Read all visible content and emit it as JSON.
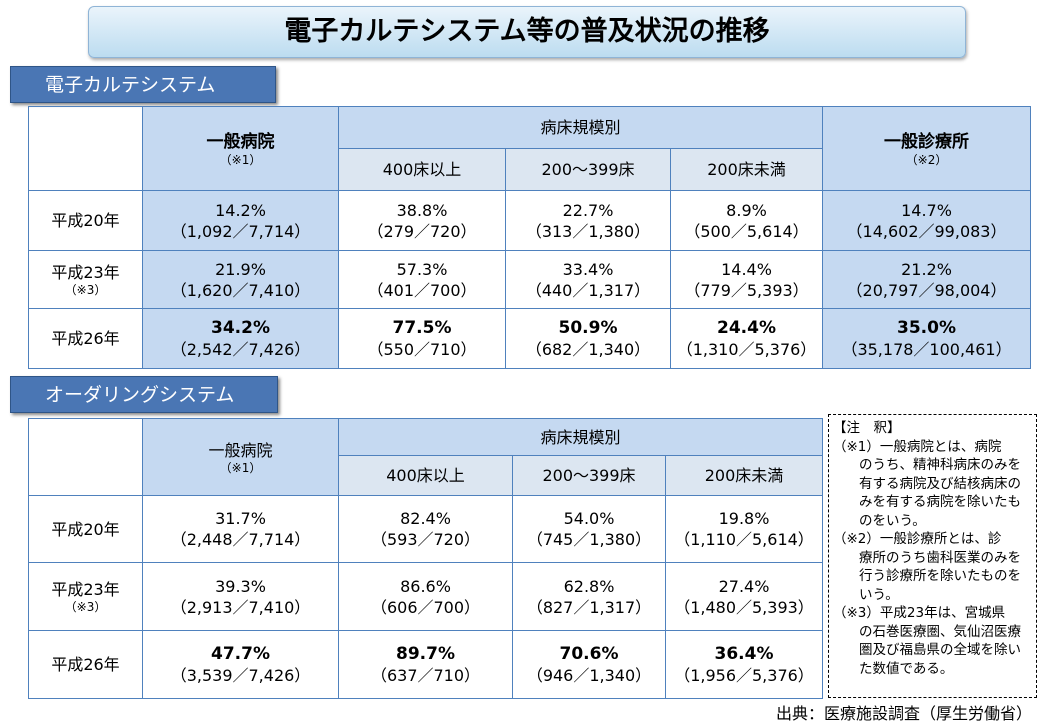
{
  "title": "電子カルテシステム等の普及状況の推移",
  "ehr": {
    "label": "電子カルテシステム",
    "headers": {
      "general_hospital": "一般病院",
      "gh_note": "（※1）",
      "bed_scale": "病床規模別",
      "b400": "400床以上",
      "b200": "200～399床",
      "bunder": "200床未満",
      "clinic": "一般診療所",
      "clinic_note": "（※2）"
    },
    "rows": [
      {
        "year": "平成20年",
        "note": "",
        "cells": [
          [
            "14.2%",
            "（1,092／7,714）"
          ],
          [
            "38.8%",
            "（279／720）"
          ],
          [
            "22.7%",
            "（313／1,380）"
          ],
          [
            "8.9%",
            "（500／5,614）"
          ],
          [
            "14.7%",
            "（14,602／99,083）"
          ]
        ]
      },
      {
        "year": "平成23年",
        "note": "（※3）",
        "cells": [
          [
            "21.9%",
            "（1,620／7,410）"
          ],
          [
            "57.3%",
            "（401／700）"
          ],
          [
            "33.4%",
            "（440／1,317）"
          ],
          [
            "14.4%",
            "（779／5,393）"
          ],
          [
            "21.2%",
            "（20,797／98,004）"
          ]
        ]
      },
      {
        "year": "平成26年",
        "note": "",
        "cells": [
          [
            "34.2%",
            "（2,542／7,426）"
          ],
          [
            "77.5%",
            "（550／710）"
          ],
          [
            "50.9%",
            "（682／1,340）"
          ],
          [
            "24.4%",
            "（1,310／5,376）"
          ],
          [
            "35.0%",
            "（35,178／100,461）"
          ]
        ]
      }
    ]
  },
  "ordering": {
    "label": "オーダリングシステム",
    "headers": {
      "general_hospital": "一般病院",
      "gh_note": "（※1）",
      "bed_scale": "病床規模別",
      "b400": "400床以上",
      "b200": "200～399床",
      "bunder": "200床未満"
    },
    "rows": [
      {
        "year": "平成20年",
        "note": "",
        "cells": [
          [
            "31.7%",
            "（2,448／7,714）"
          ],
          [
            "82.4%",
            "（593／720）"
          ],
          [
            "54.0%",
            "（745／1,380）"
          ],
          [
            "19.8%",
            "（1,110／5,614）"
          ]
        ]
      },
      {
        "year": "平成23年",
        "note": "（※3）",
        "cells": [
          [
            "39.3%",
            "（2,913／7,410）"
          ],
          [
            "86.6%",
            "（606／700）"
          ],
          [
            "62.8%",
            "（827／1,317）"
          ],
          [
            "27.4%",
            "（1,480／5,393）"
          ]
        ]
      },
      {
        "year": "平成26年",
        "note": "",
        "cells": [
          [
            "47.7%",
            "（3,539／7,426）"
          ],
          [
            "89.7%",
            "（637／710）"
          ],
          [
            "70.6%",
            "（946／1,340）"
          ],
          [
            "36.4%",
            "（1,956／5,376）"
          ]
        ]
      }
    ]
  },
  "notes": {
    "heading": "【注　釈】",
    "n1_head": "（※1）一般病院とは、病院",
    "n1_body": "のうち、精神科病床のみを有する病院及び結核病床のみを有する病院を除いたものをいう。",
    "n2_head": "（※2）一般診療所とは、診",
    "n2_body": "療所のうち歯科医業のみを行う診療所を除いたものをいう。",
    "n3_head": "（※3）平成23年は、宮城県",
    "n3_body": "の石巻医療圏、気仙沼医療圏及び福島県の全域を除いた数値である。"
  },
  "source": "出典：医療施設調査（厚生労働省）"
}
